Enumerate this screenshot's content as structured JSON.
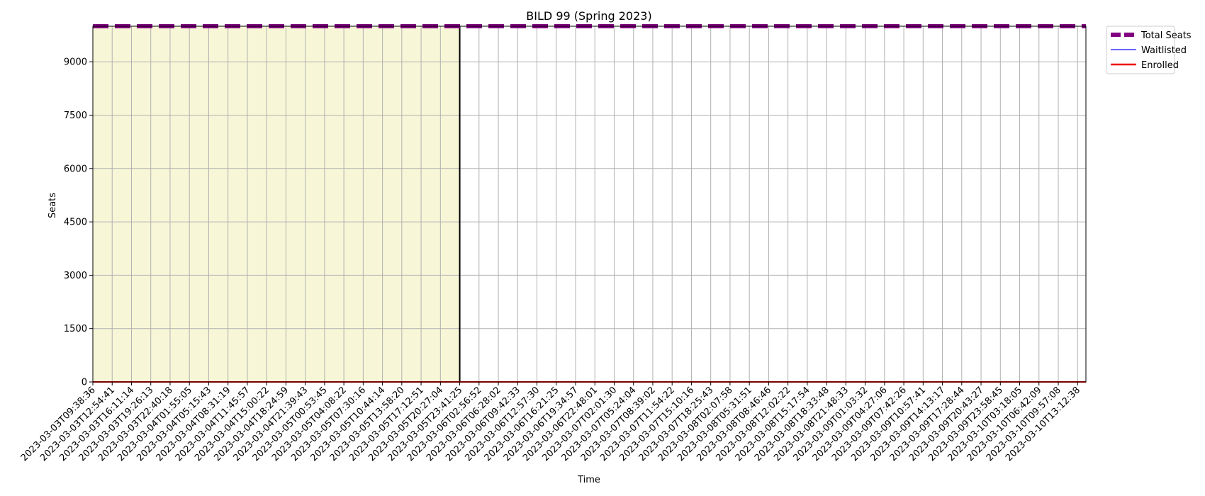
{
  "chart_data": {
    "type": "line",
    "title": "BILD 99 (Spring 2023)",
    "xlabel": "Time",
    "ylabel": "Seats",
    "y_ticks": [
      0,
      1500,
      3000,
      4500,
      6000,
      7500,
      9000
    ],
    "ylim": [
      0,
      10000
    ],
    "grid": true,
    "legend_position": "outside-top-right",
    "x": [
      "2023-03-03T09:38:36",
      "2023-03-03T12:54:41",
      "2023-03-03T16:11:14",
      "2023-03-03T19:26:13",
      "2023-03-03T22:40:18",
      "2023-03-04T01:55:05",
      "2023-03-04T05:15:43",
      "2023-03-04T08:31:19",
      "2023-03-04T11:45:57",
      "2023-03-04T15:00:22",
      "2023-03-04T18:24:59",
      "2023-03-04T21:39:43",
      "2023-03-05T00:53:45",
      "2023-03-05T04:08:22",
      "2023-03-05T07:30:16",
      "2023-03-05T10:44:14",
      "2023-03-05T13:58:20",
      "2023-03-05T17:12:51",
      "2023-03-05T20:27:04",
      "2023-03-05T23:41:25",
      "2023-03-06T02:56:52",
      "2023-03-06T06:28:02",
      "2023-03-06T09:42:33",
      "2023-03-06T12:57:30",
      "2023-03-06T16:21:25",
      "2023-03-06T19:34:57",
      "2023-03-06T22:48:01",
      "2023-03-07T02:01:30",
      "2023-03-07T05:24:04",
      "2023-03-07T08:39:02",
      "2023-03-07T11:54:22",
      "2023-03-07T15:10:16",
      "2023-03-07T18:25:43",
      "2023-03-08T02:07:58",
      "2023-03-08T05:31:51",
      "2023-03-08T08:46:46",
      "2023-03-08T12:02:22",
      "2023-03-08T15:17:54",
      "2023-03-08T18:33:48",
      "2023-03-08T21:48:33",
      "2023-03-09T01:03:32",
      "2023-03-09T04:27:06",
      "2023-03-09T07:42:26",
      "2023-03-09T10:57:41",
      "2023-03-09T14:13:17",
      "2023-03-09T17:28:44",
      "2023-03-09T20:43:27",
      "2023-03-09T23:58:45",
      "2023-03-10T03:18:05",
      "2023-03-10T06:42:09",
      "2023-03-10T09:57:08",
      "2023-03-10T13:12:38"
    ],
    "highlight_region": {
      "start": "2023-03-03T09:38:36",
      "end": "2023-03-05T23:41:25",
      "color": "#f7f7d8"
    },
    "vertical_marker": "2023-03-05T23:41:25",
    "series": [
      {
        "name": "Total Seats",
        "color": "#800080",
        "style": "dashed",
        "value": 10000
      },
      {
        "name": "Waitlisted",
        "color": "#3333ff",
        "style": "solid",
        "value": 0
      },
      {
        "name": "Enrolled",
        "color": "#ee0000",
        "style": "solid",
        "value": 0
      }
    ]
  }
}
